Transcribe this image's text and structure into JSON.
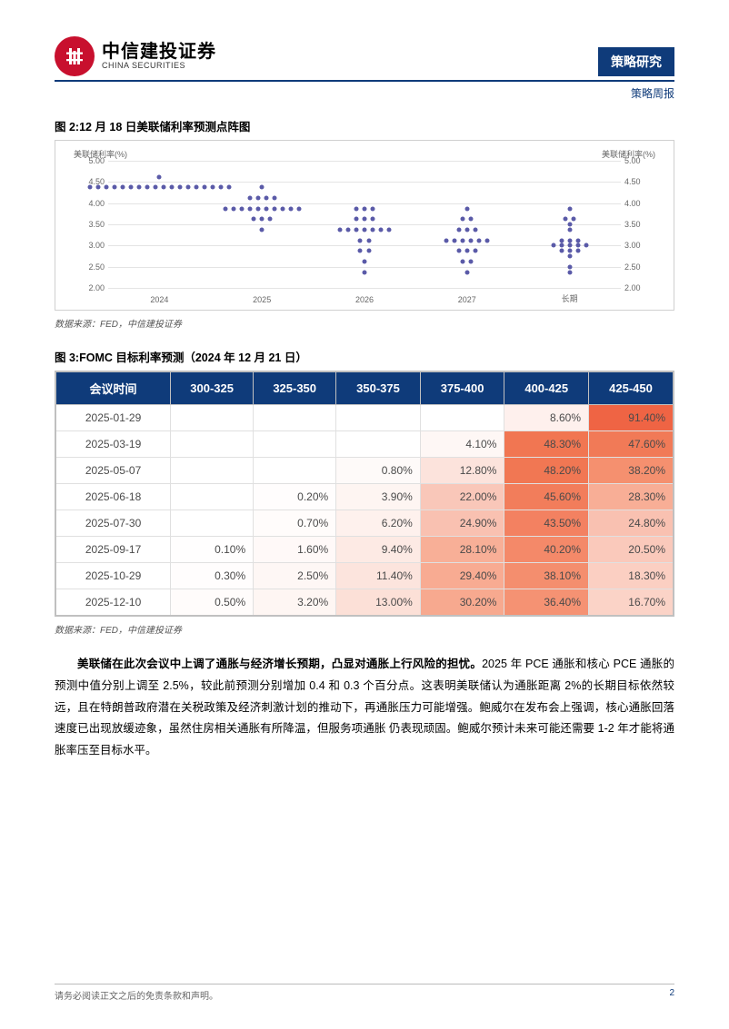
{
  "header": {
    "brand_cn": "中信建投证券",
    "brand_en": "CHINA SECURITIES",
    "banner": "策略研究",
    "subhead": "策略周报",
    "logo_color": "#c8102e",
    "banner_bg": "#0f3b7a"
  },
  "fig2": {
    "title": "图 2:12 月 18 日美联储利率预测点阵图",
    "source": "数据来源：FED，中信建投证券",
    "y_axis_label": "美联储利率(%)",
    "ylim": [
      2.0,
      5.0
    ],
    "ytick_step": 0.5,
    "yticks": [
      "2.00",
      "2.50",
      "3.00",
      "3.50",
      "4.00",
      "4.50",
      "5.00"
    ],
    "categories": [
      "2024",
      "2025",
      "2026",
      "2027",
      "长期"
    ],
    "dot_color": "#5a5aa8",
    "grid_color": "#e4e4e4",
    "series": {
      "2024": [
        [
          4.375,
          18
        ],
        [
          4.625,
          1
        ]
      ],
      "2025": [
        [
          4.375,
          1
        ],
        [
          4.125,
          4
        ],
        [
          3.875,
          10
        ],
        [
          3.625,
          3
        ],
        [
          3.375,
          1
        ]
      ],
      "2026": [
        [
          3.875,
          3
        ],
        [
          3.625,
          3
        ],
        [
          3.375,
          7
        ],
        [
          3.125,
          2
        ],
        [
          2.875,
          2
        ],
        [
          2.625,
          1
        ],
        [
          2.375,
          1
        ]
      ],
      "2027": [
        [
          3.875,
          1
        ],
        [
          3.625,
          2
        ],
        [
          3.375,
          3
        ],
        [
          3.125,
          6
        ],
        [
          2.875,
          3
        ],
        [
          2.625,
          2
        ],
        [
          2.375,
          1
        ]
      ],
      "长期": [
        [
          3.875,
          1
        ],
        [
          3.625,
          2
        ],
        [
          3.5,
          1
        ],
        [
          3.375,
          1
        ],
        [
          3.125,
          3
        ],
        [
          3.0,
          5
        ],
        [
          2.875,
          3
        ],
        [
          2.75,
          1
        ],
        [
          2.5,
          1
        ],
        [
          2.375,
          1
        ]
      ]
    }
  },
  "fig3": {
    "title": "图 3:FOMC 目标利率预测（2024 年 12 月 21 日）",
    "source": "数据来源：FED，中信建投证券",
    "header_bg": "#0f3b7a",
    "columns": [
      "会议时间",
      "300-325",
      "325-350",
      "350-375",
      "375-400",
      "400-425",
      "425-450"
    ],
    "rows": [
      {
        "date": "2025-01-29",
        "cells": [
          "",
          "",
          "",
          "",
          "8.60%",
          "91.40%"
        ],
        "bg": [
          "",
          "",
          "",
          "",
          "#fef0ed",
          "#ef6444"
        ]
      },
      {
        "date": "2025-03-19",
        "cells": [
          "",
          "",
          "",
          "4.10%",
          "48.30%",
          "47.60%"
        ],
        "bg": [
          "",
          "",
          "",
          "#fef7f5",
          "#f17652",
          "#f17a57"
        ]
      },
      {
        "date": "2025-05-07",
        "cells": [
          "",
          "",
          "0.80%",
          "12.80%",
          "48.20%",
          "38.20%"
        ],
        "bg": [
          "",
          "",
          "#fefaf9",
          "#fce3dc",
          "#f17753",
          "#f5906f"
        ]
      },
      {
        "date": "2025-06-18",
        "cells": [
          "",
          "0.20%",
          "3.90%",
          "22.00%",
          "45.60%",
          "28.30%"
        ],
        "bg": [
          "",
          "#fffdfd",
          "#fef5f2",
          "#f9c7b9",
          "#f27d5b",
          "#f8ae96"
        ]
      },
      {
        "date": "2025-07-30",
        "cells": [
          "",
          "0.70%",
          "6.20%",
          "24.90%",
          "43.50%",
          "24.80%"
        ],
        "bg": [
          "",
          "#fffcfb",
          "#fef1ed",
          "#f9c1b1",
          "#f38161",
          "#f9c1b1"
        ]
      },
      {
        "date": "2025-09-17",
        "cells": [
          "0.10%",
          "1.60%",
          "9.40%",
          "28.10%",
          "40.20%",
          "20.50%"
        ],
        "bg": [
          "#fffefe",
          "#fff9f8",
          "#fdeae4",
          "#f8af97",
          "#f48969",
          "#fac9bb"
        ]
      },
      {
        "date": "2025-10-29",
        "cells": [
          "0.30%",
          "2.50%",
          "11.40%",
          "29.40%",
          "38.10%",
          "18.30%"
        ],
        "bg": [
          "#fffdfd",
          "#fef7f5",
          "#fce4dd",
          "#f8ab92",
          "#f48e6e",
          "#fbcfc2"
        ]
      },
      {
        "date": "2025-12-10",
        "cells": [
          "0.50%",
          "3.20%",
          "13.00%",
          "30.20%",
          "36.40%",
          "16.70%"
        ],
        "bg": [
          "#fffcfb",
          "#fef6f3",
          "#fce0d7",
          "#f7a98f",
          "#f59273",
          "#fbd3c7"
        ]
      }
    ]
  },
  "body": {
    "lead_bold": "美联储在此次会议中上调了通胀与经济增长预期，凸显对通胀上行风险的担忧。",
    "rest": "2025 年 PCE 通胀和核心 PCE 通胀的预测中值分别上调至 2.5%，较此前预测分别增加 0.4 和 0.3 个百分点。这表明美联储认为通胀距离 2%的长期目标依然较远，且在特朗普政府潜在关税政策及经济刺激计划的推动下，再通胀压力可能增强。鲍威尔在发布会上强调，核心通胀回落速度已出现放缓迹象，虽然住房相关通胀有所降温，但服务项通胀 仍表现顽固。鲍威尔预计未来可能还需要 1-2 年才能将通胀率压至目标水平。"
  },
  "footer": {
    "disclaimer": "请务必阅读正文之后的免责条款和声明。",
    "page": "2"
  }
}
